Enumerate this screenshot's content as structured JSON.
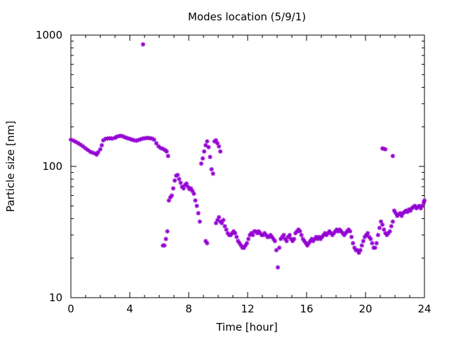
{
  "chart_data": {
    "type": "scatter",
    "title": "Modes location (5/9/1)",
    "xlabel": "Time [hour]",
    "ylabel": "Particle size [nm]",
    "xlim": [
      0,
      24
    ],
    "ylim": [
      10,
      1000
    ],
    "y_scale": "log",
    "grid": false,
    "legend": "none",
    "marker": "star",
    "color": "#9400d3",
    "x_ticks": [
      {
        "value": 0,
        "label": "0"
      },
      {
        "value": 4,
        "label": "4"
      },
      {
        "value": 8,
        "label": "8"
      },
      {
        "value": 12,
        "label": "12"
      },
      {
        "value": 16,
        "label": "16"
      },
      {
        "value": 20,
        "label": "20"
      },
      {
        "value": 24,
        "label": "24"
      }
    ],
    "y_ticks": [
      {
        "value": 10,
        "label": "10"
      },
      {
        "value": 100,
        "label": "100"
      },
      {
        "value": 1000,
        "label": "1000"
      }
    ],
    "series": [
      {
        "points": [
          [
            0.0,
            160
          ],
          [
            0.17,
            157
          ],
          [
            0.33,
            154
          ],
          [
            0.5,
            150
          ],
          [
            0.67,
            146
          ],
          [
            0.83,
            142
          ],
          [
            1.0,
            137
          ],
          [
            1.17,
            133
          ],
          [
            1.33,
            129
          ],
          [
            1.5,
            127
          ],
          [
            1.67,
            125
          ],
          [
            1.75,
            123
          ],
          [
            1.85,
            128
          ],
          [
            2.0,
            135
          ],
          [
            2.1,
            145
          ],
          [
            2.2,
            158
          ],
          [
            2.35,
            162
          ],
          [
            2.5,
            163
          ],
          [
            2.65,
            164
          ],
          [
            2.8,
            163
          ],
          [
            3.0,
            165
          ],
          [
            3.1,
            168
          ],
          [
            3.25,
            170
          ],
          [
            3.4,
            171
          ],
          [
            3.55,
            169
          ],
          [
            3.7,
            166
          ],
          [
            3.85,
            164
          ],
          [
            4.0,
            162
          ],
          [
            4.15,
            160
          ],
          [
            4.3,
            158
          ],
          [
            4.45,
            157
          ],
          [
            4.6,
            159
          ],
          [
            4.75,
            161
          ],
          [
            4.9,
            163
          ],
          [
            5.05,
            164
          ],
          [
            5.2,
            165
          ],
          [
            5.35,
            164
          ],
          [
            5.5,
            163
          ],
          [
            5.65,
            160
          ],
          [
            5.8,
            150
          ],
          [
            5.95,
            142
          ],
          [
            6.1,
            138
          ],
          [
            6.25,
            136
          ],
          [
            6.4,
            133
          ],
          [
            6.5,
            130
          ],
          [
            6.6,
            120
          ],
          [
            4.9,
            850
          ],
          [
            6.25,
            25
          ],
          [
            6.35,
            25
          ],
          [
            6.45,
            28
          ],
          [
            6.55,
            32
          ],
          [
            6.65,
            55
          ],
          [
            6.75,
            58
          ],
          [
            6.85,
            60
          ],
          [
            6.95,
            68
          ],
          [
            7.05,
            78
          ],
          [
            7.15,
            85
          ],
          [
            7.25,
            86
          ],
          [
            7.35,
            80
          ],
          [
            7.45,
            75
          ],
          [
            7.55,
            70
          ],
          [
            7.65,
            68
          ],
          [
            7.75,
            72
          ],
          [
            7.85,
            74
          ],
          [
            7.95,
            70
          ],
          [
            8.05,
            67
          ],
          [
            8.15,
            68
          ],
          [
            8.25,
            65
          ],
          [
            8.35,
            62
          ],
          [
            8.45,
            55
          ],
          [
            8.55,
            50
          ],
          [
            8.65,
            44
          ],
          [
            8.75,
            38
          ],
          [
            8.85,
            105
          ],
          [
            8.95,
            115
          ],
          [
            9.05,
            130
          ],
          [
            9.15,
            145
          ],
          [
            9.25,
            155
          ],
          [
            9.35,
            140
          ],
          [
            9.45,
            118
          ],
          [
            9.55,
            95
          ],
          [
            9.65,
            88
          ],
          [
            9.75,
            155
          ],
          [
            9.85,
            158
          ],
          [
            9.95,
            150
          ],
          [
            10.05,
            142
          ],
          [
            10.15,
            130
          ],
          [
            9.15,
            27
          ],
          [
            9.25,
            26
          ],
          [
            9.85,
            37
          ],
          [
            9.95,
            39
          ],
          [
            10.05,
            41
          ],
          [
            10.15,
            38
          ],
          [
            10.25,
            37
          ],
          [
            10.35,
            39
          ],
          [
            10.45,
            35
          ],
          [
            10.55,
            33
          ],
          [
            10.65,
            31
          ],
          [
            10.75,
            30
          ],
          [
            10.85,
            30
          ],
          [
            10.95,
            31
          ],
          [
            11.05,
            32
          ],
          [
            11.15,
            31
          ],
          [
            11.25,
            29
          ],
          [
            11.35,
            27
          ],
          [
            11.45,
            26
          ],
          [
            11.55,
            25
          ],
          [
            11.65,
            24
          ],
          [
            11.75,
            24
          ],
          [
            11.85,
            25
          ],
          [
            11.95,
            26
          ],
          [
            12.05,
            28
          ],
          [
            12.15,
            30
          ],
          [
            12.25,
            31
          ],
          [
            12.35,
            30
          ],
          [
            12.45,
            32
          ],
          [
            12.55,
            32
          ],
          [
            12.65,
            31
          ],
          [
            12.75,
            32
          ],
          [
            12.85,
            31
          ],
          [
            12.95,
            30
          ],
          [
            13.05,
            30
          ],
          [
            13.15,
            31
          ],
          [
            13.25,
            30
          ],
          [
            13.35,
            29
          ],
          [
            13.45,
            29
          ],
          [
            13.55,
            30
          ],
          [
            13.65,
            29
          ],
          [
            13.75,
            28
          ],
          [
            13.85,
            27
          ],
          [
            13.95,
            23
          ],
          [
            14.05,
            17
          ],
          [
            14.15,
            24
          ],
          [
            14.25,
            28
          ],
          [
            14.35,
            29
          ],
          [
            14.45,
            30
          ],
          [
            14.55,
            28
          ],
          [
            14.65,
            27
          ],
          [
            14.75,
            29
          ],
          [
            14.85,
            30
          ],
          [
            14.95,
            28
          ],
          [
            15.05,
            27
          ],
          [
            15.15,
            28
          ],
          [
            15.25,
            31
          ],
          [
            15.35,
            32
          ],
          [
            15.45,
            33
          ],
          [
            15.55,
            32
          ],
          [
            15.65,
            30
          ],
          [
            15.75,
            28
          ],
          [
            15.85,
            27
          ],
          [
            15.95,
            26
          ],
          [
            16.05,
            25
          ],
          [
            16.15,
            26
          ],
          [
            16.25,
            27
          ],
          [
            16.35,
            28
          ],
          [
            16.45,
            27
          ],
          [
            16.55,
            28
          ],
          [
            16.65,
            29
          ],
          [
            16.75,
            28
          ],
          [
            16.85,
            29
          ],
          [
            16.95,
            28
          ],
          [
            17.05,
            29
          ],
          [
            17.15,
            30
          ],
          [
            17.25,
            31
          ],
          [
            17.35,
            30
          ],
          [
            17.45,
            31
          ],
          [
            17.55,
            32
          ],
          [
            17.65,
            31
          ],
          [
            17.75,
            30
          ],
          [
            17.85,
            31
          ],
          [
            17.95,
            32
          ],
          [
            18.05,
            33
          ],
          [
            18.15,
            32
          ],
          [
            18.25,
            33
          ],
          [
            18.35,
            32
          ],
          [
            18.45,
            31
          ],
          [
            18.55,
            30
          ],
          [
            18.65,
            31
          ],
          [
            18.75,
            32
          ],
          [
            18.85,
            33
          ],
          [
            18.95,
            32
          ],
          [
            19.05,
            29
          ],
          [
            19.15,
            26
          ],
          [
            19.25,
            24
          ],
          [
            19.35,
            23
          ],
          [
            19.45,
            23
          ],
          [
            19.55,
            22
          ],
          [
            19.65,
            23
          ],
          [
            19.75,
            25
          ],
          [
            19.85,
            27
          ],
          [
            19.95,
            29
          ],
          [
            20.05,
            30
          ],
          [
            20.15,
            31
          ],
          [
            20.25,
            29
          ],
          [
            20.35,
            28
          ],
          [
            20.45,
            26
          ],
          [
            20.55,
            24
          ],
          [
            20.65,
            24
          ],
          [
            20.75,
            26
          ],
          [
            20.85,
            30
          ],
          [
            20.95,
            34
          ],
          [
            21.05,
            38
          ],
          [
            21.15,
            36
          ],
          [
            21.25,
            33
          ],
          [
            21.35,
            31
          ],
          [
            21.45,
            30
          ],
          [
            21.55,
            31
          ],
          [
            21.65,
            32
          ],
          [
            21.75,
            35
          ],
          [
            21.85,
            38
          ],
          [
            21.95,
            46
          ],
          [
            22.05,
            44
          ],
          [
            22.15,
            42
          ],
          [
            22.25,
            43
          ],
          [
            22.35,
            44
          ],
          [
            22.45,
            42
          ],
          [
            22.55,
            44
          ],
          [
            22.65,
            45
          ],
          [
            22.75,
            46
          ],
          [
            22.85,
            45
          ],
          [
            22.95,
            47
          ],
          [
            23.05,
            46
          ],
          [
            23.15,
            48
          ],
          [
            23.25,
            49
          ],
          [
            23.35,
            50
          ],
          [
            23.45,
            48
          ],
          [
            23.55,
            49
          ],
          [
            23.65,
            50
          ],
          [
            23.75,
            48
          ],
          [
            23.85,
            50
          ],
          [
            23.95,
            53
          ],
          [
            24.0,
            55
          ],
          [
            21.15,
            137
          ],
          [
            21.25,
            136
          ],
          [
            21.35,
            135
          ],
          [
            21.85,
            120
          ]
        ]
      }
    ]
  }
}
